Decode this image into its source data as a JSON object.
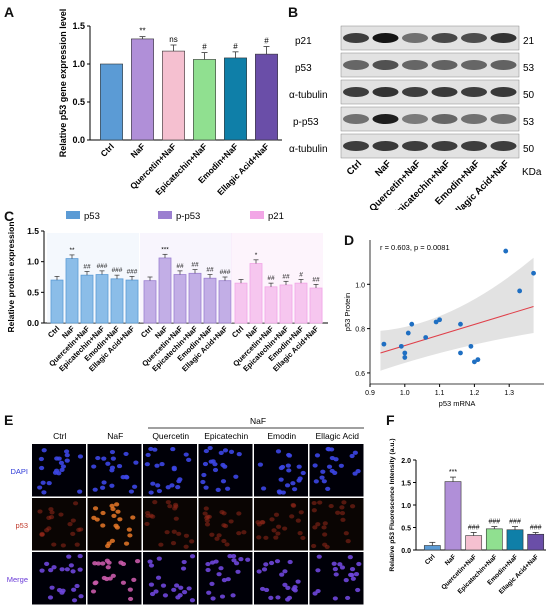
{
  "panels": {
    "A": "A",
    "B": "B",
    "C": "C",
    "D": "D",
    "E": "E",
    "F": "F"
  },
  "colors": {
    "ctrl": "#5b9bd5",
    "naf": "#b08fd8",
    "quercetin": "#f5c0d0",
    "epicatechin": "#90e090",
    "emodin": "#0f7fa8",
    "ellagic": "#6a4ea8",
    "p53": "#5b9bd5",
    "pp53": "#9b7fd0",
    "p21": "#f2a6e6",
    "dot": "#1f6fc2",
    "fit": "#e0404a",
    "band": "#d8d8d8"
  },
  "panelA": {
    "chart_data": {
      "type": "bar",
      "categories": [
        "Ctrl",
        "NaF",
        "Quercetin+NaF",
        "Epicatechin+NaF",
        "Emodin+NaF",
        "Ellagic Acid+NaF"
      ],
      "values": [
        1.0,
        1.33,
        1.17,
        1.06,
        1.08,
        1.13
      ],
      "errors": [
        0,
        0.03,
        0.08,
        0.09,
        0.08,
        0.1
      ],
      "annotations": [
        "",
        "**",
        "ns",
        "#",
        "#",
        "#"
      ],
      "ylabel": "Relative p53 gene expression level",
      "ylim": [
        0,
        1.5
      ],
      "yticks": [
        0.0,
        0.5,
        1.0,
        1.5
      ]
    }
  },
  "panelB": {
    "rows": [
      "p21",
      "p53",
      "α-tubulin",
      "p-p53",
      "α-tubulin"
    ],
    "kda": [
      "21",
      "53",
      "50",
      "53",
      "50"
    ],
    "kda_unit": "KDa",
    "lanes": [
      "Ctrl",
      "NaF",
      "Quercetin+NaF",
      "Epicatechin+NaF",
      "Emodin+NaF",
      "Ellagic Acid+NaF"
    ]
  },
  "panelC": {
    "chart_data": {
      "type": "bar",
      "ylabel": "Relative  protein expression",
      "ylim": [
        0,
        1.5
      ],
      "yticks": [
        0.0,
        0.5,
        1.0,
        1.5
      ],
      "legend": [
        "p53",
        "p-p53",
        "p21"
      ],
      "groups": [
        {
          "name": "p53",
          "categories": [
            "Ctrl",
            "NaF",
            "Quercetin+NaF",
            "Epicatechin+NaF",
            "Emodin+NaF",
            "Ellagic Acid+NaF"
          ],
          "values": [
            0.7,
            1.05,
            0.78,
            0.79,
            0.72,
            0.7
          ],
          "annotations": [
            "",
            "**",
            "##",
            "###",
            "###",
            "###"
          ]
        },
        {
          "name": "p-p53",
          "categories": [
            "Ctrl",
            "NaF",
            "Quercetin+NaF",
            "Epicatechin+NaF",
            "Emodin+NaF",
            "Ellagic Acid+NaF"
          ],
          "values": [
            0.69,
            1.06,
            0.79,
            0.81,
            0.73,
            0.69
          ],
          "annotations": [
            "",
            "***",
            "##",
            "##",
            "##",
            "###"
          ]
        },
        {
          "name": "p21",
          "categories": [
            "Ctrl",
            "NaF",
            "Quercetin+NaF",
            "Epicatechin+NaF",
            "Emodin+NaF",
            "Ellagic Acid+NaF"
          ],
          "values": [
            0.65,
            0.97,
            0.59,
            0.62,
            0.65,
            0.57
          ],
          "annotations": [
            "",
            "*",
            "##",
            "##",
            "#",
            "##"
          ]
        }
      ]
    }
  },
  "panelD": {
    "chart_data": {
      "type": "scatter",
      "title": "r = 0.603, p = 0.0081",
      "xlabel": "p53 mRNA",
      "ylabel": "p53 Protein",
      "xlim": [
        0.9,
        1.4
      ],
      "ylim": [
        0.55,
        1.2
      ],
      "xticks": [
        0.9,
        1.0,
        1.1,
        1.2,
        1.3
      ],
      "yticks": [
        0.6,
        0.8,
        1.0
      ],
      "points": [
        [
          0.94,
          0.73
        ],
        [
          0.99,
          0.72
        ],
        [
          1.0,
          0.69
        ],
        [
          1.0,
          0.67
        ],
        [
          1.01,
          0.78
        ],
        [
          1.02,
          0.82
        ],
        [
          1.06,
          0.76
        ],
        [
          1.09,
          0.83
        ],
        [
          1.1,
          0.84
        ],
        [
          1.16,
          0.69
        ],
        [
          1.16,
          0.82
        ],
        [
          1.19,
          0.72
        ],
        [
          1.2,
          0.65
        ],
        [
          1.21,
          0.66
        ],
        [
          1.29,
          1.15
        ],
        [
          1.33,
          0.97
        ],
        [
          1.37,
          1.05
        ]
      ],
      "fit": [
        [
          0.93,
          0.69
        ],
        [
          1.37,
          0.9
        ]
      ]
    }
  },
  "panelE": {
    "group_label": "NaF",
    "columns": [
      "Ctrl",
      "NaF",
      "Quercetin",
      "Epicatechin",
      "Emodin",
      "Ellagic Acid"
    ],
    "rows": [
      "DAPI",
      "p53",
      "Merge"
    ]
  },
  "panelF": {
    "chart_data": {
      "type": "bar",
      "categories": [
        "Ctrl",
        "NaF",
        "Quercetin+NaF",
        "Epicatechin+NaF",
        "Emodin+NaF",
        "Ellagic Acid+NaF"
      ],
      "values": [
        0.1,
        1.52,
        0.32,
        0.47,
        0.45,
        0.35
      ],
      "errors": [
        0.07,
        0.1,
        0.07,
        0.05,
        0.07,
        0.04
      ],
      "annotations": [
        "",
        "***",
        "###",
        "###",
        "###",
        "###"
      ],
      "ylabel": "Relative p53 Fluorescence Intensity (a.u.)",
      "ylim": [
        0,
        2.0
      ],
      "yticks": [
        0.0,
        0.5,
        1.0,
        1.5,
        2.0
      ]
    }
  }
}
